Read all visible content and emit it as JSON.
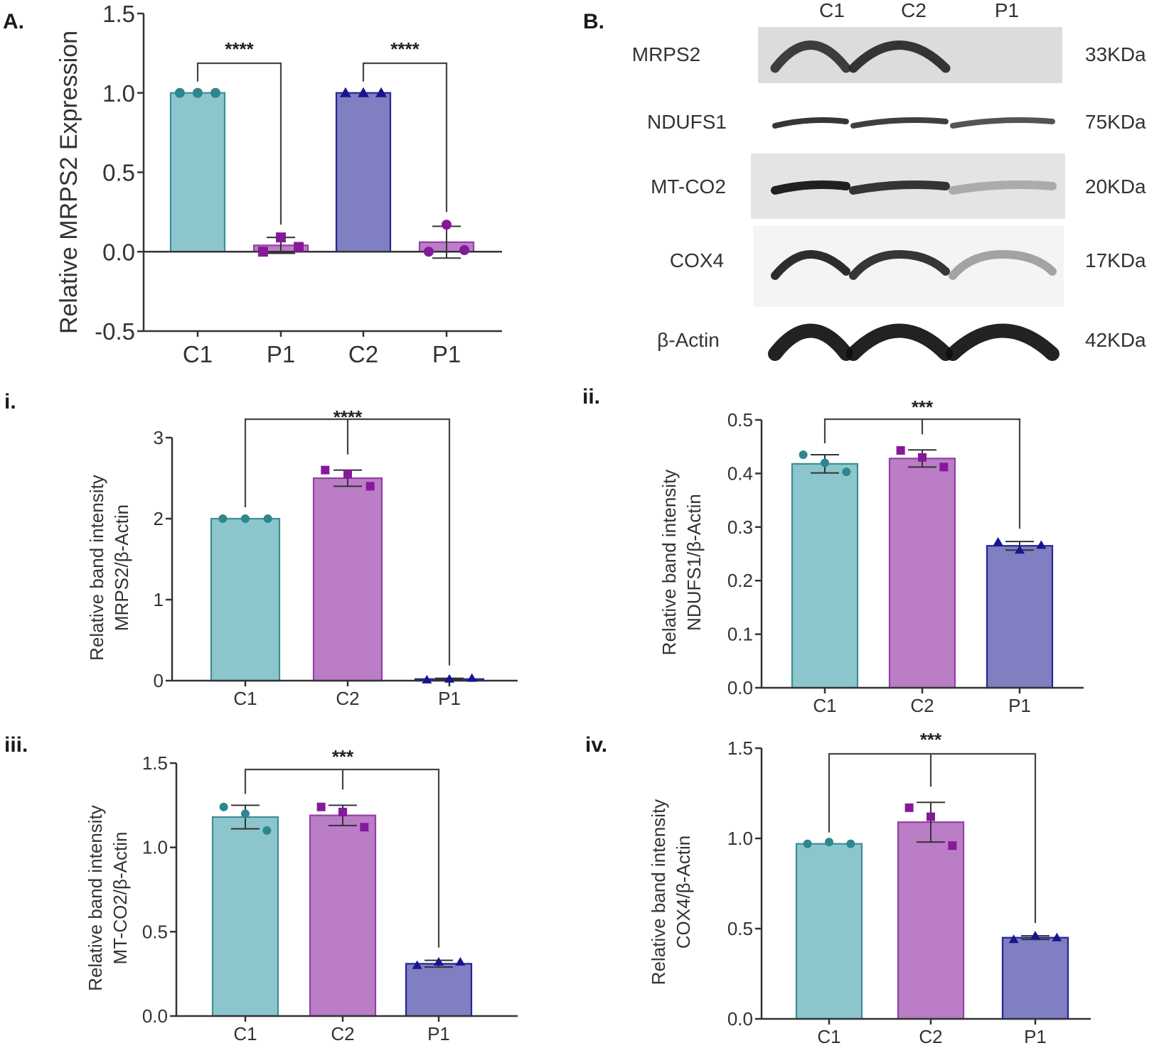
{
  "colors": {
    "teal_fill": "#8cc6cc",
    "teal_stroke": "#3a8f98",
    "teal_point": "#2e868f",
    "purple_fill": "#bb7dc6",
    "purple_stroke": "#9440a6",
    "purple_point": "#86189a",
    "indigo_fill": "#7f7fc1",
    "indigo_stroke": "#25259a",
    "indigo_point": "#16168e"
  },
  "blot": {
    "panel_label": "B.",
    "lanes": [
      "C1",
      "C2",
      "P1"
    ],
    "rows": [
      {
        "protein": "MRPS2",
        "size": "33KDa",
        "intensity": [
          0.85,
          0.9,
          0.0
        ],
        "background": "#dcdcdc"
      },
      {
        "protein": "NDUFS1",
        "size": "75KDa",
        "intensity": [
          0.9,
          0.85,
          0.75
        ],
        "background": "#ffffff"
      },
      {
        "protein": "MT-CO2",
        "size": "20KDa",
        "intensity": [
          1.0,
          0.9,
          0.3
        ],
        "background": "#e4e4e4"
      },
      {
        "protein": "COX4",
        "size": "17KDa",
        "intensity": [
          0.95,
          0.9,
          0.35
        ],
        "background": "#f4f4f4"
      },
      {
        "protein": "β-Actin",
        "size": "42KDa",
        "intensity": [
          1.0,
          1.0,
          1.0
        ],
        "background": "#ffffff"
      }
    ]
  },
  "chart_data": [
    {
      "id": "A",
      "panel_label": "A.",
      "type": "bar",
      "title": "",
      "xlabel": "",
      "ylabel": "Relative MRPS2 Expression",
      "ylim": [
        -0.5,
        1.5
      ],
      "yticks": [
        -0.5,
        0.0,
        0.5,
        1.0,
        1.5
      ],
      "ytick_labels": [
        "-0.5",
        "0.0",
        "0.5",
        "1.0",
        "1.5"
      ],
      "categories": [
        "C1",
        "P1",
        "C2",
        "P1"
      ],
      "values": [
        1.0,
        0.04,
        1.0,
        0.06
      ],
      "errors": [
        0.0,
        0.05,
        0.0,
        0.1
      ],
      "points": [
        [
          1.0,
          1.0,
          1.0
        ],
        [
          0.0,
          0.09,
          0.03
        ],
        [
          1.0,
          1.0,
          1.0
        ],
        [
          0.0,
          0.17,
          0.01
        ]
      ],
      "styles": [
        "teal-circle",
        "purple-circle",
        "indigo-triangle",
        "purple-circle"
      ],
      "point_styles": [
        "teal-circle",
        "purple-square",
        "indigo-triangle",
        "purple-circle"
      ],
      "comparisons": [
        {
          "from": 0,
          "to": 1,
          "label": "****"
        },
        {
          "from": 2,
          "to": 3,
          "label": "****"
        }
      ],
      "grid": false,
      "legend": "none"
    },
    {
      "id": "i",
      "panel_label": "i.",
      "type": "bar",
      "title": "",
      "xlabel": "",
      "ylabel": [
        "Relative band intensity",
        "MRPS2/β-Actin"
      ],
      "ylim": [
        0,
        3
      ],
      "yticks": [
        0,
        1,
        2,
        3
      ],
      "ytick_labels": [
        "0",
        "1",
        "2",
        "3"
      ],
      "categories": [
        "C1",
        "C2",
        "P1"
      ],
      "values": [
        2.0,
        2.5,
        0.02
      ],
      "errors": [
        0.0,
        0.1,
        0.01
      ],
      "points": [
        [
          2.0,
          2.0,
          2.0
        ],
        [
          2.6,
          2.55,
          2.4
        ],
        [
          0.01,
          0.02,
          0.03
        ]
      ],
      "styles": [
        "teal-circle",
        "purple-square",
        "indigo-triangle"
      ],
      "point_styles": [
        "teal-circle",
        "purple-square",
        "indigo-triangle"
      ],
      "comparisons": [
        {
          "from": 0,
          "to": 2,
          "mid": 1,
          "label": "****"
        }
      ],
      "grid": false,
      "legend": "none"
    },
    {
      "id": "ii",
      "panel_label": "ii.",
      "type": "bar",
      "title": "",
      "xlabel": "",
      "ylabel": [
        "Relative band intensity",
        "NDUFS1/β-Actin"
      ],
      "ylim": [
        0,
        0.5
      ],
      "yticks": [
        0.0,
        0.1,
        0.2,
        0.3,
        0.4,
        0.5
      ],
      "ytick_labels": [
        "0.0",
        "0.1",
        "0.2",
        "0.3",
        "0.4",
        "0.5"
      ],
      "categories": [
        "C1",
        "C2",
        "P1"
      ],
      "values": [
        0.418,
        0.428,
        0.265
      ],
      "errors": [
        0.017,
        0.016,
        0.008
      ],
      "points": [
        [
          0.435,
          0.42,
          0.403
        ],
        [
          0.443,
          0.43,
          0.412
        ],
        [
          0.272,
          0.257,
          0.266
        ]
      ],
      "styles": [
        "teal-circle",
        "purple-square",
        "indigo-triangle"
      ],
      "point_styles": [
        "teal-circle",
        "purple-square",
        "indigo-triangle"
      ],
      "comparisons": [
        {
          "from": 0,
          "to": 2,
          "mid": 1,
          "label": "***"
        }
      ],
      "grid": false,
      "legend": "none"
    },
    {
      "id": "iii",
      "panel_label": "iii.",
      "type": "bar",
      "title": "",
      "xlabel": "",
      "ylabel": [
        "Relative band intensity",
        "MT-CO2/β-Actin"
      ],
      "ylim": [
        0,
        1.5
      ],
      "yticks": [
        0.0,
        0.5,
        1.0,
        1.5
      ],
      "ytick_labels": [
        "0.0",
        "0.5",
        "1.0",
        "1.5"
      ],
      "categories": [
        "C1",
        "C2",
        "P1"
      ],
      "values": [
        1.18,
        1.19,
        0.31
      ],
      "errors": [
        0.07,
        0.06,
        0.02
      ],
      "points": [
        [
          1.24,
          1.2,
          1.1
        ],
        [
          1.24,
          1.21,
          1.12
        ],
        [
          0.3,
          0.32,
          0.32
        ]
      ],
      "styles": [
        "teal-circle",
        "purple-square",
        "indigo-triangle"
      ],
      "point_styles": [
        "teal-circle",
        "purple-square",
        "indigo-triangle"
      ],
      "comparisons": [
        {
          "from": 0,
          "to": 2,
          "mid": 1,
          "label": "***"
        }
      ],
      "grid": false,
      "legend": "none"
    },
    {
      "id": "iv",
      "panel_label": "iv.",
      "type": "bar",
      "title": "",
      "xlabel": "",
      "ylabel": [
        "Relative band intensity",
        "COX4/β-Actin"
      ],
      "ylim": [
        0,
        1.5
      ],
      "yticks": [
        0.0,
        0.5,
        1.0,
        1.5
      ],
      "ytick_labels": [
        "0.0",
        "0.5",
        "1.0",
        "1.5"
      ],
      "categories": [
        "C1",
        "C2",
        "P1"
      ],
      "values": [
        0.97,
        1.09,
        0.45
      ],
      "errors": [
        0.0,
        0.11,
        0.01
      ],
      "points": [
        [
          0.97,
          0.98,
          0.97
        ],
        [
          1.17,
          1.12,
          0.96
        ],
        [
          0.44,
          0.46,
          0.45
        ]
      ],
      "styles": [
        "teal-circle",
        "purple-square",
        "indigo-triangle"
      ],
      "point_styles": [
        "teal-circle",
        "purple-square",
        "indigo-triangle"
      ],
      "comparisons": [
        {
          "from": 0,
          "to": 2,
          "mid": 1,
          "label": "***"
        }
      ],
      "grid": false,
      "legend": "none"
    }
  ]
}
